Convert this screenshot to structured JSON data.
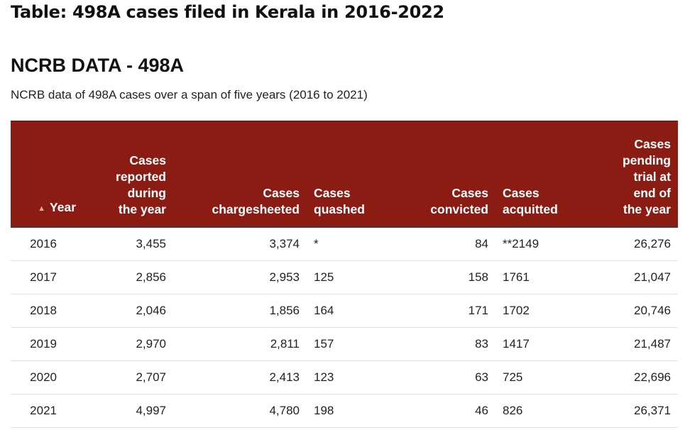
{
  "page_title": "Table: 498A cases filed in Kerala in 2016-2022",
  "section_title": "NCRB DATA - 498A",
  "subtitle": "NCRB data of 498A cases over a span of five years (2016 to 2021)",
  "colors": {
    "header_bg": "#8b1c14",
    "header_text": "#ffffff",
    "row_border": "#e2e2e2"
  },
  "table": {
    "sort_icon": "sort-ascending-icon",
    "sort_glyph": "▲",
    "headers": {
      "year": "Year",
      "reported": [
        "Cases",
        "reported",
        "during",
        "the year"
      ],
      "chargesheeted": [
        "Cases",
        "chargesheeted"
      ],
      "quashed": [
        "Cases",
        "quashed"
      ],
      "convicted": [
        "Cases",
        "convicted"
      ],
      "acquitted": [
        "Cases",
        "acquitted"
      ],
      "pending": [
        "Cases",
        "pending",
        "trial at",
        "end of",
        "the year"
      ]
    },
    "rows": [
      {
        "year": "2016",
        "reported": "3,455",
        "chargesheeted": "3,374",
        "quashed": "*",
        "convicted": "84",
        "acquitted": "**2149",
        "pending": "26,276"
      },
      {
        "year": "2017",
        "reported": "2,856",
        "chargesheeted": "2,953",
        "quashed": "125",
        "convicted": "158",
        "acquitted": "1761",
        "pending": "21,047"
      },
      {
        "year": "2018",
        "reported": "2,046",
        "chargesheeted": "1,856",
        "quashed": "164",
        "convicted": "171",
        "acquitted": "1702",
        "pending": "20,746"
      },
      {
        "year": "2019",
        "reported": "2,970",
        "chargesheeted": "2,811",
        "quashed": "157",
        "convicted": "83",
        "acquitted": "1417",
        "pending": "21,487"
      },
      {
        "year": "2020",
        "reported": "2,707",
        "chargesheeted": "2,413",
        "quashed": "123",
        "convicted": "63",
        "acquitted": "725",
        "pending": "22,696"
      },
      {
        "year": "2021",
        "reported": "4,997",
        "chargesheeted": "4,780",
        "quashed": "198",
        "convicted": "46",
        "acquitted": "826",
        "pending": "26,371"
      }
    ]
  }
}
